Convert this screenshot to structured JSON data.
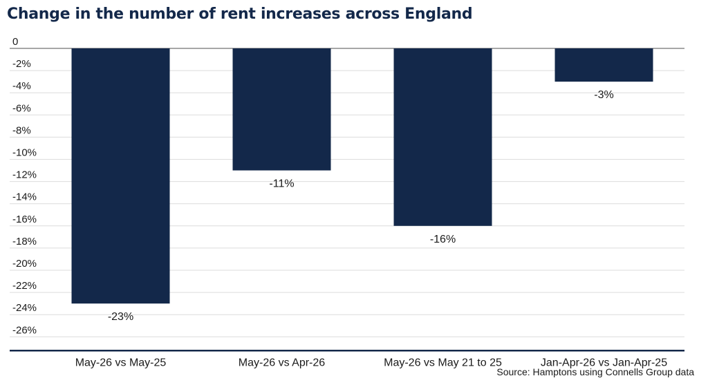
{
  "chart_data": {
    "type": "bar",
    "title": "Change in the number of rent increases across England",
    "categories": [
      "May-26 vs May-25",
      "May-26 vs Apr-26",
      "May-26 vs May 21 to 25",
      "Jan-Apr-26 vs Jan-Apr-25"
    ],
    "values": [
      -23,
      -11,
      -16,
      -3
    ],
    "data_labels": [
      "-23%",
      "-11%",
      "-16%",
      "-3%"
    ],
    "ylim": [
      -26,
      0
    ],
    "yticks": [
      "0",
      "-2%",
      "-4%",
      "-6%",
      "-8%",
      "-10%",
      "-12%",
      "-14%",
      "-16%",
      "-18%",
      "-20%",
      "-22%",
      "-24%",
      "-26%"
    ],
    "grid": true,
    "bar_color": "#13284a",
    "source": "Source: Hamptons using Connells Group data"
  }
}
